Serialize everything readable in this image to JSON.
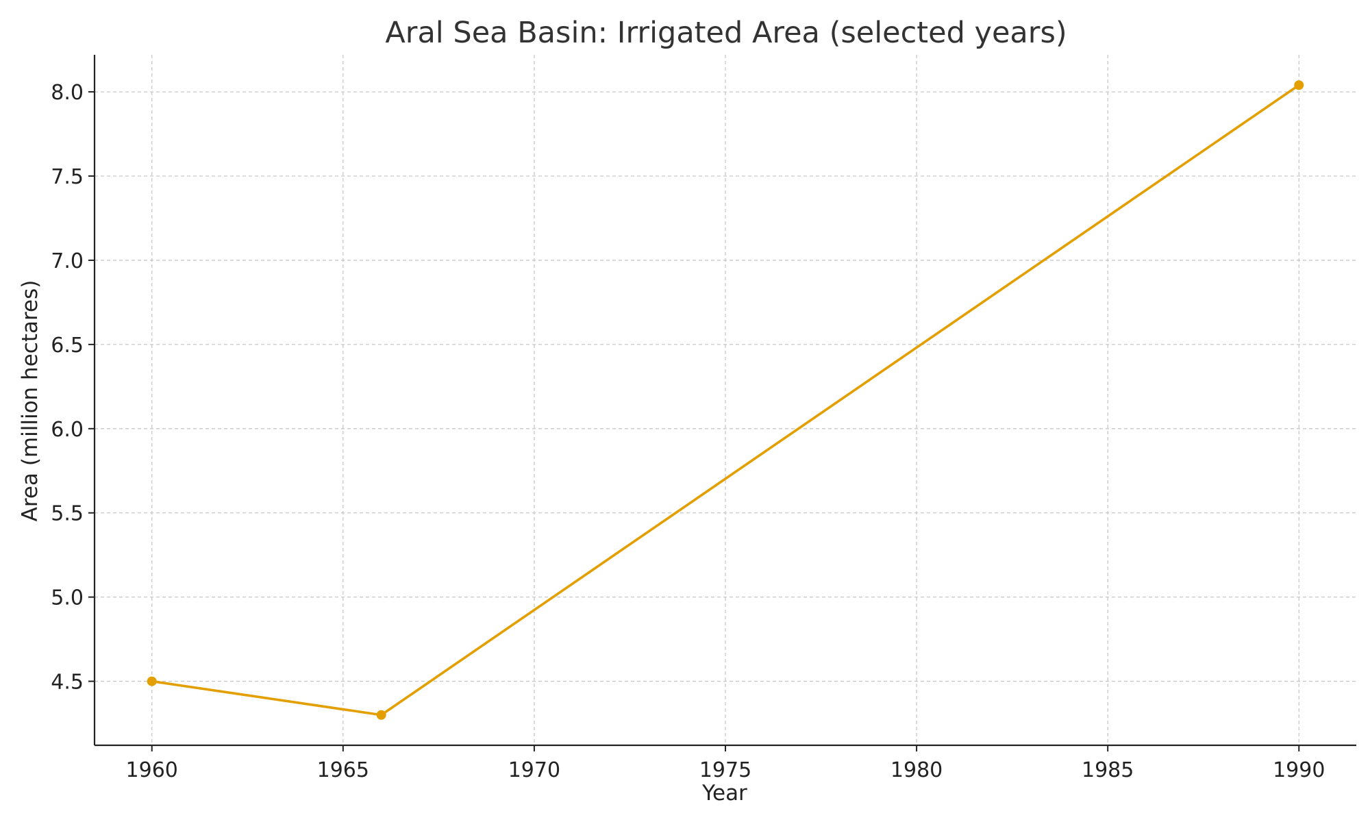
{
  "chart_data": {
    "type": "line",
    "title": "Aral Sea Basin: Irrigated Area (selected years)",
    "xlabel": "Year",
    "ylabel": "Area (million hectares)",
    "x": [
      1960,
      1966,
      1990
    ],
    "series": [
      {
        "values": [
          4.5,
          4.3,
          8.04
        ]
      }
    ],
    "xlim": [
      1958.5,
      1991.5
    ],
    "ylim": [
      4.12,
      8.22
    ],
    "x_ticks": [
      "1960",
      "1965",
      "1970",
      "1975",
      "1980",
      "1985",
      "1990"
    ],
    "y_ticks": [
      "4.5",
      "5.0",
      "5.5",
      "6.0",
      "6.5",
      "7.0",
      "7.5",
      "8.0"
    ],
    "grid": true,
    "line_color": "#e39f00"
  }
}
